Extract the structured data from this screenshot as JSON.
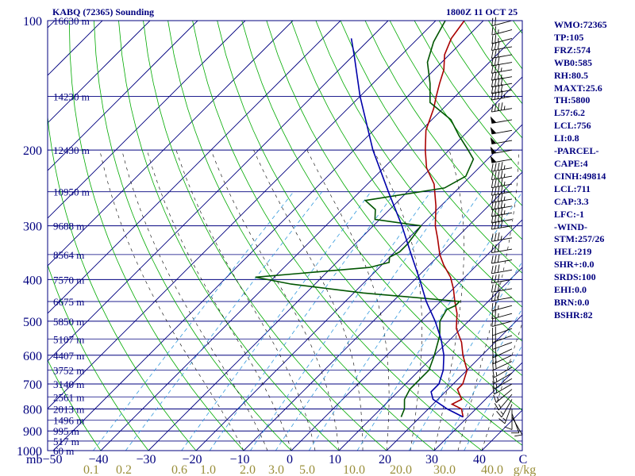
{
  "header": {
    "station": "KABQ (72365) Sounding",
    "time": "1800Z 11 OCT 25"
  },
  "stats": [
    "WMO:72365",
    "TP:105",
    "FRZ:574",
    "WB0:585",
    "RH:80.5",
    "MAXT:25.6",
    "TH:5800",
    "L57:6.2",
    "LCL:756",
    "LI:0.8",
    "-PARCEL-",
    "CAPE:4",
    "CINH:49814",
    "LCL:711",
    "CAP:3.3",
    "LFC:-1",
    "-WIND-",
    "STM:257/26",
    "HEL:219",
    "SHR+:0.0",
    "SRDS:100",
    "EHI:0.0",
    "BRN:0.0",
    "BSHR:82"
  ],
  "chart_data": {
    "type": "skew-t",
    "pressure_axis": {
      "unit": "mb",
      "ylim": [
        1000,
        100
      ],
      "ticks": [
        100,
        200,
        300,
        400,
        500,
        600,
        700,
        800,
        900,
        1000
      ]
    },
    "temperature_axis": {
      "ticks": [
        "−50",
        "−40",
        "−30",
        "−20",
        "−10",
        "0",
        "10",
        "20",
        "30",
        "40",
        "C"
      ]
    },
    "mixing_ratio_axis": {
      "ticks": [
        "0.1",
        "0.2",
        "0.6",
        "1.0",
        "2.0",
        "3.0",
        "5.0",
        "10.0",
        "20.0",
        "30.0",
        "40.0"
      ],
      "unit": "g/kg"
    },
    "height_labels": [
      {
        "p": 100,
        "text": "16630 m"
      },
      {
        "p": 150,
        "text": "14230 m"
      },
      {
        "p": 200,
        "text": "12430 m"
      },
      {
        "p": 250,
        "text": "10950 m"
      },
      {
        "p": 300,
        "text": "9688 m"
      },
      {
        "p": 350,
        "text": "8564 m"
      },
      {
        "p": 400,
        "text": "7570 m"
      },
      {
        "p": 450,
        "text": "6675 m"
      },
      {
        "p": 500,
        "text": "5850 m"
      },
      {
        "p": 550,
        "text": "5107 m"
      },
      {
        "p": 600,
        "text": "4407 m"
      },
      {
        "p": 650,
        "text": "3752 m"
      },
      {
        "p": 700,
        "text": "3140 m"
      },
      {
        "p": 750,
        "text": "2561 m"
      },
      {
        "p": 800,
        "text": "2013 m"
      },
      {
        "p": 850,
        "text": "1496 m"
      },
      {
        "p": 900,
        "text": "995 m"
      },
      {
        "p": 950,
        "text": "517 m"
      },
      {
        "p": 1000,
        "text": "60 m"
      }
    ],
    "series": [
      {
        "kind": "temperature",
        "color": "#aa0000",
        "points": [
          [
            835,
            29
          ],
          [
            800,
            27
          ],
          [
            780,
            24
          ],
          [
            760,
            25
          ],
          [
            720,
            22
          ],
          [
            700,
            22
          ],
          [
            650,
            20
          ],
          [
            600,
            16
          ],
          [
            560,
            13
          ],
          [
            520,
            9
          ],
          [
            480,
            6
          ],
          [
            450,
            3
          ],
          [
            420,
            0
          ],
          [
            395,
            -3
          ],
          [
            370,
            -7
          ],
          [
            350,
            -10
          ],
          [
            320,
            -14
          ],
          [
            300,
            -17
          ],
          [
            270,
            -21
          ],
          [
            240,
            -26
          ],
          [
            220,
            -31
          ],
          [
            200,
            -35
          ],
          [
            180,
            -39
          ],
          [
            160,
            -42
          ],
          [
            150,
            -44
          ],
          [
            140,
            -46
          ],
          [
            130,
            -48
          ],
          [
            120,
            -51
          ],
          [
            110,
            -53
          ],
          [
            100,
            -54
          ]
        ]
      },
      {
        "kind": "dewpoint",
        "color": "#005500",
        "points": [
          [
            835,
            16
          ],
          [
            800,
            15
          ],
          [
            760,
            13
          ],
          [
            720,
            12
          ],
          [
            700,
            12
          ],
          [
            650,
            12
          ],
          [
            600,
            10
          ],
          [
            540,
            7
          ],
          [
            500,
            4
          ],
          [
            470,
            3
          ],
          [
            460,
            4
          ],
          [
            450,
            4
          ],
          [
            430,
            -18
          ],
          [
            410,
            -35
          ],
          [
            395,
            -44
          ],
          [
            375,
            -22
          ],
          [
            365,
            -19
          ],
          [
            355,
            -20
          ],
          [
            345,
            -19
          ],
          [
            330,
            -19
          ],
          [
            300,
            -20
          ],
          [
            290,
            -31
          ],
          [
            275,
            -33
          ],
          [
            262,
            -37
          ],
          [
            245,
            -23
          ],
          [
            230,
            -21
          ],
          [
            210,
            -23
          ],
          [
            200,
            -26
          ],
          [
            185,
            -31
          ],
          [
            170,
            -36
          ],
          [
            155,
            -44
          ],
          [
            140,
            -48
          ],
          [
            125,
            -53
          ],
          [
            112,
            -56
          ],
          [
            100,
            -58
          ]
        ]
      },
      {
        "kind": "parcel",
        "color": "#0000aa",
        "points": [
          [
            835,
            29
          ],
          [
            800,
            24
          ],
          [
            760,
            19
          ],
          [
            730,
            17
          ],
          [
            700,
            17
          ],
          [
            650,
            15
          ],
          [
            600,
            12
          ],
          [
            550,
            8
          ],
          [
            500,
            3
          ],
          [
            450,
            -3
          ],
          [
            400,
            -9
          ],
          [
            350,
            -16
          ],
          [
            300,
            -24
          ],
          [
            250,
            -34
          ],
          [
            200,
            -46
          ],
          [
            150,
            -60
          ],
          [
            120,
            -70
          ],
          [
            110,
            -74
          ]
        ]
      }
    ],
    "winds_kt": [
      [
        835,
        150,
        10
      ],
      [
        820,
        160,
        10
      ],
      [
        800,
        180,
        10
      ],
      [
        780,
        200,
        15
      ],
      [
        760,
        210,
        15
      ],
      [
        740,
        220,
        15
      ],
      [
        720,
        230,
        15
      ],
      [
        700,
        240,
        15
      ],
      [
        680,
        240,
        15
      ],
      [
        660,
        240,
        15
      ],
      [
        640,
        240,
        15
      ],
      [
        620,
        245,
        20
      ],
      [
        600,
        245,
        20
      ],
      [
        580,
        245,
        20
      ],
      [
        560,
        250,
        20
      ],
      [
        540,
        250,
        20
      ],
      [
        520,
        250,
        20
      ],
      [
        500,
        255,
        20
      ],
      [
        480,
        255,
        25
      ],
      [
        460,
        255,
        25
      ],
      [
        440,
        260,
        30
      ],
      [
        420,
        260,
        30
      ],
      [
        400,
        260,
        30
      ],
      [
        380,
        260,
        30
      ],
      [
        360,
        260,
        30
      ],
      [
        340,
        260,
        30
      ],
      [
        320,
        260,
        35
      ],
      [
        300,
        260,
        40
      ],
      [
        290,
        260,
        40
      ],
      [
        280,
        260,
        45
      ],
      [
        270,
        260,
        45
      ],
      [
        260,
        260,
        45
      ],
      [
        250,
        260,
        45
      ],
      [
        240,
        260,
        45
      ],
      [
        230,
        260,
        45
      ],
      [
        220,
        260,
        45
      ],
      [
        210,
        260,
        50
      ],
      [
        200,
        260,
        50
      ],
      [
        190,
        260,
        50
      ],
      [
        180,
        260,
        50
      ],
      [
        170,
        260,
        50
      ],
      [
        160,
        260,
        45
      ],
      [
        150,
        260,
        45
      ],
      [
        145,
        260,
        40
      ],
      [
        140,
        260,
        40
      ],
      [
        135,
        260,
        35
      ],
      [
        130,
        260,
        35
      ],
      [
        125,
        260,
        30
      ],
      [
        120,
        260,
        30
      ],
      [
        115,
        260,
        30
      ],
      [
        110,
        255,
        25
      ],
      [
        105,
        255,
        25
      ],
      [
        100,
        255,
        20
      ]
    ]
  }
}
